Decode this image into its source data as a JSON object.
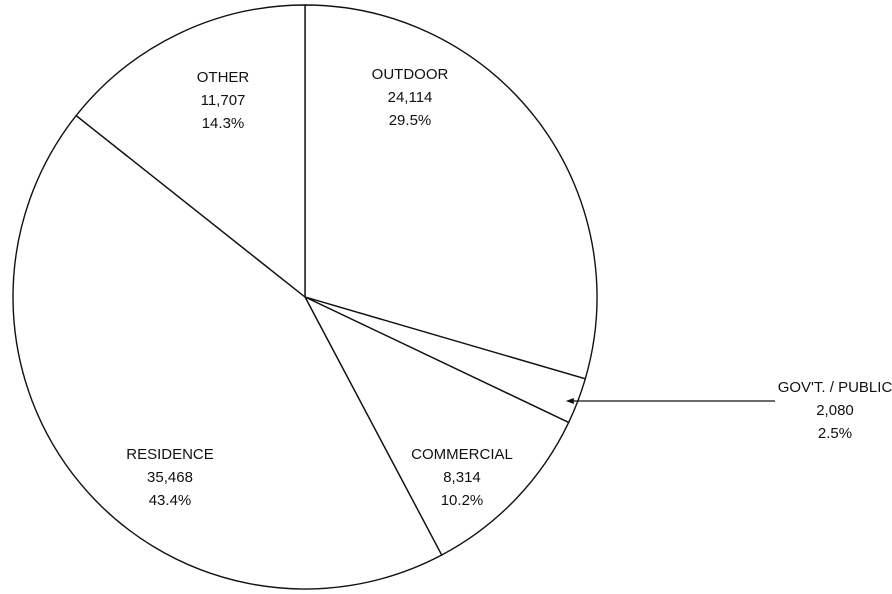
{
  "chart_data": {
    "type": "pie",
    "categories": [
      "OUTDOOR",
      "GOV'T. / PUBLIC",
      "COMMERCIAL",
      "RESIDENCE",
      "OTHER"
    ],
    "values": [
      24114,
      2080,
      8314,
      35468,
      11707
    ],
    "value_labels": [
      "24,114",
      "2,080",
      "8,314",
      "35,468",
      "11,707"
    ],
    "percentages": [
      29.5,
      2.5,
      10.2,
      43.4,
      14.3
    ],
    "percentage_labels": [
      "29.5%",
      "2.5%",
      "10.2%",
      "43.4%",
      "14.3%"
    ],
    "color": "#ffffff"
  }
}
